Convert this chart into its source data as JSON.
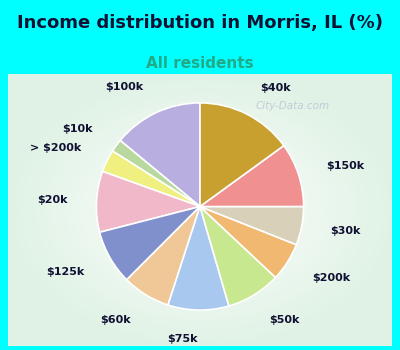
{
  "title": "Income distribution in Morris, IL (%)",
  "subtitle": "All residents",
  "watermark": "City-Data.com",
  "background_cyan": "#00FFFF",
  "slices": [
    {
      "label": "$100k",
      "value": 14.0,
      "color": "#b8aee0"
    },
    {
      "label": "$10k",
      "value": 2.0,
      "color": "#b8d8a0"
    },
    {
      "label": "> $200k",
      "value": 3.5,
      "color": "#f0f080"
    },
    {
      "label": "$20k",
      "value": 9.5,
      "color": "#f0b8c8"
    },
    {
      "label": "$125k",
      "value": 8.5,
      "color": "#8090cc"
    },
    {
      "label": "$60k",
      "value": 7.5,
      "color": "#f0c898"
    },
    {
      "label": "$75k",
      "value": 9.5,
      "color": "#a8c8f0"
    },
    {
      "label": "$50k",
      "value": 8.5,
      "color": "#c8e890"
    },
    {
      "label": "$200k",
      "value": 6.0,
      "color": "#f0b870"
    },
    {
      "label": "$30k",
      "value": 6.0,
      "color": "#d8d0b8"
    },
    {
      "label": "$150k",
      "value": 10.0,
      "color": "#f09090"
    },
    {
      "label": "$40k",
      "value": 15.0,
      "color": "#c8a030"
    }
  ],
  "title_fontsize": 13,
  "subtitle_fontsize": 11,
  "label_fontsize": 8
}
